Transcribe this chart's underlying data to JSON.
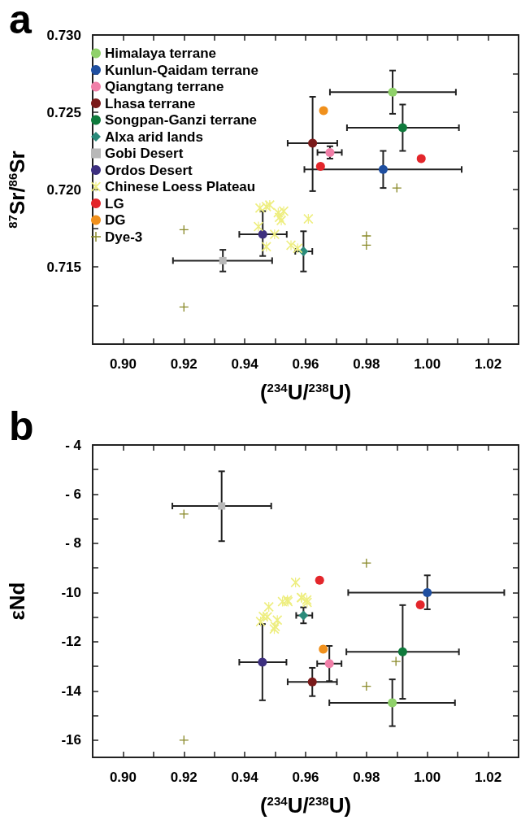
{
  "chart_data": [
    {
      "type": "scatter",
      "title": "a",
      "xlabel": "($^{234}$U/$^{238}$U)",
      "ylabel": "$^{87}$Sr/$^{86}$Sr",
      "legend": "top left",
      "xlim": [
        0.89,
        1.03
      ],
      "ylim": [
        0.71,
        0.73
      ],
      "xticks": [
        {
          "value": 0.9,
          "label": "0.90"
        },
        {
          "value": 0.91,
          "label": null
        },
        {
          "value": 0.92,
          "label": "0.92"
        },
        {
          "value": 0.93,
          "label": null
        },
        {
          "value": 0.94,
          "label": "0.94"
        },
        {
          "value": 0.95,
          "label": null
        },
        {
          "value": 0.96,
          "label": "0.96"
        },
        {
          "value": 0.97,
          "label": null
        },
        {
          "value": 0.98,
          "label": "0.98"
        },
        {
          "value": 0.99,
          "label": null
        },
        {
          "value": 1.0,
          "label": "1.00"
        },
        {
          "value": 1.01,
          "label": null
        },
        {
          "value": 1.02,
          "label": "1.02"
        }
      ],
      "yticks": [
        {
          "value": 0.7125,
          "label": null
        },
        {
          "value": 0.715,
          "label": "0.715"
        },
        {
          "value": 0.7175,
          "label": null
        },
        {
          "value": 0.72,
          "label": "0.720"
        },
        {
          "value": 0.7225,
          "label": null
        },
        {
          "value": 0.725,
          "label": "0.725"
        },
        {
          "value": 0.7275,
          "label": null
        },
        {
          "value": 0.73,
          "label": "0.730"
        }
      ],
      "series": [
        {
          "name": "Himalaya terrane",
          "color": "#8fd16a",
          "marker": "circle",
          "x": [
            0.9886
          ],
          "values": [
            0.7263
          ],
          "xerrors": [
            [
              0.968,
              1.0094
            ]
          ],
          "errors": [
            [
              0.7249,
              0.7277
            ]
          ]
        },
        {
          "name": "Kunlun-Qaidam terrane",
          "color": "#1f4fa0",
          "marker": "circle",
          "x": [
            0.9855
          ],
          "values": [
            0.7213
          ],
          "xerrors": [
            [
              0.9596,
              1.0113
            ]
          ],
          "errors": [
            [
              0.7201,
              0.7225
            ]
          ]
        },
        {
          "name": "Qiangtang terrane",
          "color": "#f07fa8",
          "marker": "circle",
          "x": [
            0.968
          ],
          "values": [
            0.7224
          ],
          "xerrors": [
            [
              0.9639,
              0.9719
            ]
          ],
          "errors": [
            [
              0.722,
              0.7228
            ]
          ]
        },
        {
          "name": "Lhasa terrane",
          "color": "#7a1a1a",
          "marker": "circle",
          "x": [
            0.9623
          ],
          "values": [
            0.723
          ],
          "xerrors": [
            [
              0.9541,
              0.9704
            ]
          ],
          "errors": [
            [
              0.7199,
              0.726
            ]
          ]
        },
        {
          "name": "Songpan-Ganzi terrane",
          "color": "#0f7a3c",
          "marker": "circle",
          "x": [
            0.9919
          ],
          "values": [
            0.724
          ],
          "xerrors": [
            [
              0.9736,
              1.0104
            ]
          ],
          "errors": [
            [
              0.7225,
              0.7255
            ]
          ]
        },
        {
          "name": "Alxa arid lands",
          "color": "#2a8a7a",
          "marker": "diamond",
          "x": [
            0.9593
          ],
          "values": [
            0.716
          ],
          "xerrors": [
            [
              0.9566,
              0.9622
            ]
          ],
          "errors": [
            [
              0.7147,
              0.7173
            ]
          ]
        },
        {
          "name": "Gobi Desert",
          "color": "#b8b8b8",
          "marker": "square",
          "x": [
            0.9328
          ],
          "values": [
            0.7154
          ],
          "xerrors": [
            [
              0.9164,
              0.949
            ]
          ],
          "errors": [
            [
              0.7147,
              0.7161
            ]
          ]
        },
        {
          "name": "Ordos Desert",
          "color": "#3d2f7f",
          "marker": "circle",
          "x": [
            0.9459
          ],
          "values": [
            0.7171
          ],
          "xerrors": [
            [
              0.9382,
              0.9538
            ]
          ],
          "errors": [
            [
              0.7157,
              0.7186
            ]
          ]
        },
        {
          "name": "Chinese Loess Plateau",
          "color": "#eeee80",
          "marker": "star",
          "x": [
            0.945,
            0.9471,
            0.9482,
            0.951,
            0.9528,
            0.9514,
            0.952,
            0.9609,
            0.9445,
            0.9498,
            0.9552,
            0.9574,
            0.9471
          ],
          "values": [
            0.7188,
            0.7189,
            0.719,
            0.7185,
            0.7186,
            0.7182,
            0.718,
            0.7181,
            0.7176,
            0.7171,
            0.7164,
            0.7162,
            0.7163
          ]
        },
        {
          "name": "LG",
          "color": "#e3262b",
          "marker": "circle",
          "x": [
            0.9649,
            0.998
          ],
          "values": [
            0.7215,
            0.722
          ]
        },
        {
          "name": "DG",
          "color": "#f0901c",
          "marker": "circle",
          "x": [
            0.9659
          ],
          "values": [
            0.7251
          ]
        },
        {
          "name": "Dye-3",
          "color": "#8a8a2a",
          "marker": "cross",
          "x": [
            0.99,
            0.92,
            0.92,
            0.98,
            0.98
          ],
          "values": [
            0.7201,
            0.7174,
            0.7124,
            0.717,
            0.7164
          ]
        }
      ]
    },
    {
      "type": "scatter",
      "title": "b",
      "xlabel": "($^{234}$U/$^{238}$U)",
      "ylabel": "εNd",
      "xlim": [
        0.89,
        1.03
      ],
      "ylim": [
        -16.7,
        -4
      ],
      "xticks": [
        {
          "value": 0.9,
          "label": "0.90"
        },
        {
          "value": 0.91,
          "label": null
        },
        {
          "value": 0.92,
          "label": "0.92"
        },
        {
          "value": 0.93,
          "label": null
        },
        {
          "value": 0.94,
          "label": "0.94"
        },
        {
          "value": 0.95,
          "label": null
        },
        {
          "value": 0.96,
          "label": "0.96"
        },
        {
          "value": 0.97,
          "label": null
        },
        {
          "value": 0.98,
          "label": "0.98"
        },
        {
          "value": 0.99,
          "label": null
        },
        {
          "value": 1.0,
          "label": "1.00"
        },
        {
          "value": 1.01,
          "label": null
        },
        {
          "value": 1.02,
          "label": "1.02"
        }
      ],
      "yticks": [
        -16,
        {
          "value": -15,
          "label": null
        },
        -14,
        {
          "value": -13,
          "label": null
        },
        -12,
        {
          "value": -11,
          "label": null
        },
        -10,
        {
          "value": -9,
          "label": null
        },
        {
          "value": -8,
          "label": "- 8"
        },
        {
          "value": -7,
          "label": null
        },
        {
          "value": -6,
          "label": "- 6"
        },
        {
          "value": -5,
          "label": null
        },
        {
          "value": -4,
          "label": "- 4"
        }
      ],
      "series": [
        {
          "color": "#8fd16a",
          "marker": "circle",
          "x": [
            0.9885
          ],
          "values": [
            -14.48
          ],
          "xerrors": [
            [
              0.9678,
              1.0091
            ]
          ],
          "errors": [
            [
              -15.43,
              -13.53
            ]
          ]
        },
        {
          "color": "#1f4fa0",
          "marker": "circle",
          "x": [
            1.0
          ],
          "values": [
            -10.0
          ],
          "xerrors": [
            [
              0.974,
              1.0253
            ]
          ],
          "errors": [
            [
              -10.68,
              -9.3
            ]
          ]
        },
        {
          "color": "#f07fa8",
          "marker": "circle",
          "x": [
            0.9678
          ],
          "values": [
            -12.89
          ],
          "xerrors": [
            [
              0.9638,
              0.9718
            ]
          ],
          "errors": [
            [
              -13.6,
              -12.17
            ]
          ]
        },
        {
          "color": "#7a1a1a",
          "marker": "circle",
          "x": [
            0.9622
          ],
          "values": [
            -13.63
          ],
          "xerrors": [
            [
              0.9541,
              0.9703
            ]
          ],
          "errors": [
            [
              -14.21,
              -13.06
            ]
          ]
        },
        {
          "color": "#0f7a3c",
          "marker": "circle",
          "x": [
            0.9919
          ],
          "values": [
            -12.41
          ],
          "xerrors": [
            [
              0.9734,
              1.0104
            ]
          ],
          "errors": [
            [
              -14.32,
              -10.51
            ]
          ]
        },
        {
          "color": "#2a8a7a",
          "marker": "diamond",
          "x": [
            0.9593
          ],
          "values": [
            -10.93
          ],
          "xerrors": [
            [
              0.9569,
              0.9622
            ]
          ],
          "errors": [
            [
              -11.25,
              -10.6
            ]
          ]
        },
        {
          "color": "#b8b8b8",
          "marker": "square",
          "x": [
            0.9324
          ],
          "values": [
            -6.48
          ],
          "xerrors": [
            [
              0.9162,
              0.9487
            ]
          ],
          "errors": [
            [
              -7.91,
              -5.07
            ]
          ]
        },
        {
          "color": "#3d2f7f",
          "marker": "circle",
          "x": [
            0.9458
          ],
          "values": [
            -12.83
          ],
          "xerrors": [
            [
              0.9382,
              0.9537
            ]
          ],
          "errors": [
            [
              -14.38,
              -11.28
            ]
          ]
        },
        {
          "color": "#eeee80",
          "marker": "star",
          "x": [
            0.9567,
            0.954,
            0.9586,
            0.9604,
            0.9479,
            0.9461,
            0.9474,
            0.9452,
            0.9507,
            0.95,
            0.9497,
            0.9524,
            0.9542,
            0.9587,
            0.9605
          ],
          "values": [
            -9.59,
            -10.3,
            -10.2,
            -10.3,
            -10.58,
            -10.97,
            -10.99,
            -11.18,
            -11.12,
            -11.38,
            -11.48,
            -10.37,
            -10.37,
            -10.21,
            -10.4
          ]
        },
        {
          "color": "#e3262b",
          "marker": "circle",
          "x": [
            0.9646,
            0.9977
          ],
          "values": [
            -9.5,
            -10.5
          ]
        },
        {
          "color": "#f0901c",
          "marker": "circle",
          "x": [
            0.9658
          ],
          "values": [
            -12.3
          ]
        },
        {
          "color": "#8a8a2a",
          "marker": "cross",
          "x": [
            0.92,
            0.98,
            0.9897,
            0.98,
            0.92
          ],
          "values": [
            -6.81,
            -8.8,
            -12.8,
            -13.81,
            -16.0
          ]
        }
      ]
    }
  ]
}
